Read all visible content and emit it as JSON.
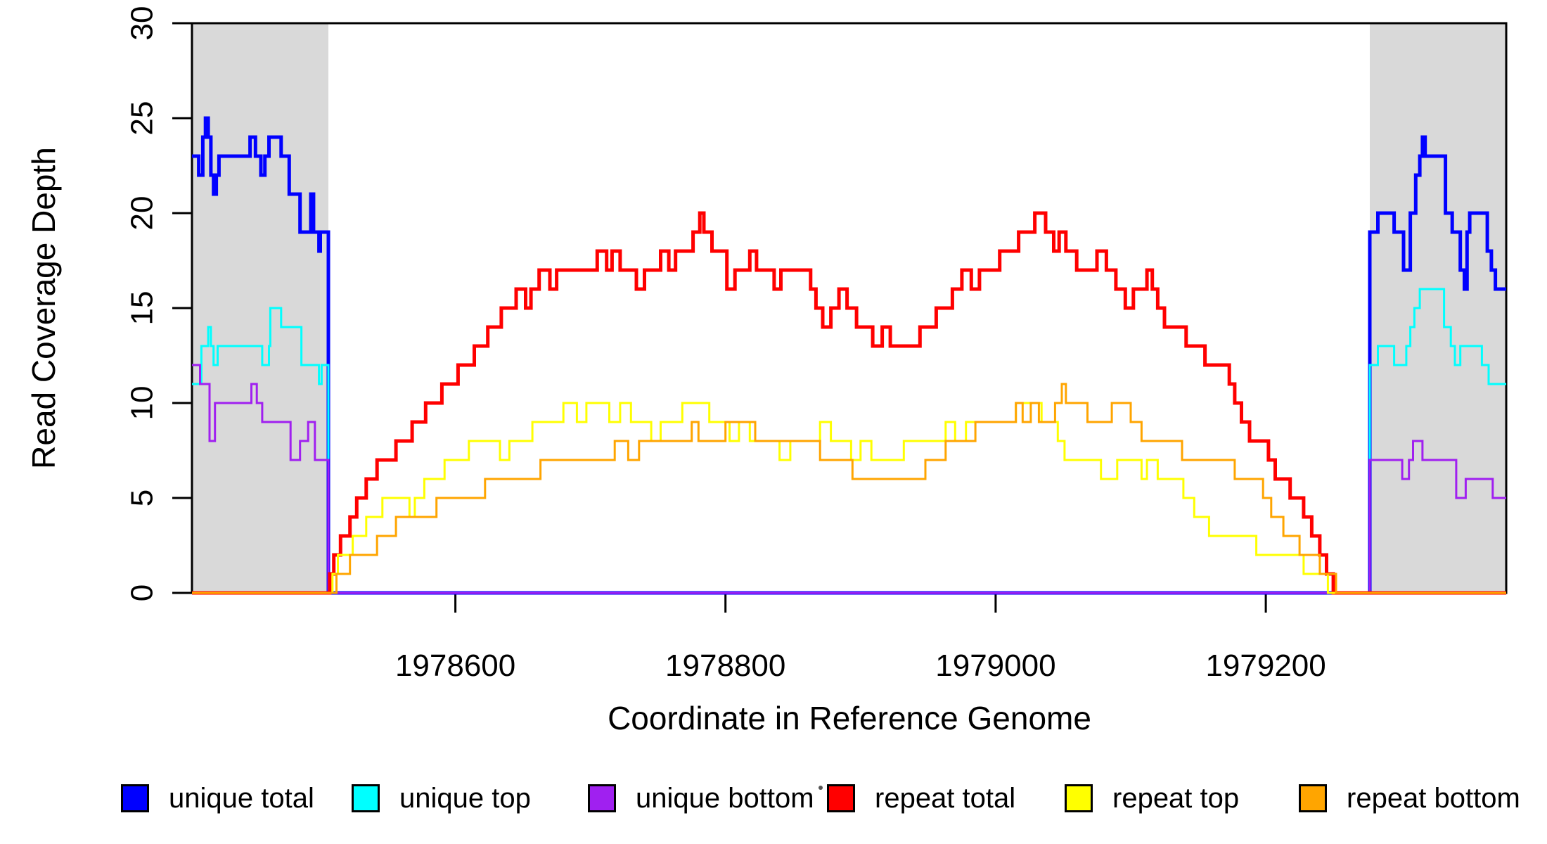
{
  "chart_data": {
    "type": "line",
    "subtype": "step",
    "title": "",
    "xlabel": "Coordinate in Reference Genome",
    "ylabel": "Read Coverage Depth",
    "xlim": [
      1978405,
      1979378
    ],
    "ylim": [
      0,
      30
    ],
    "x_ticks": [
      "1978600",
      "1978800",
      "1979000",
      "1979200"
    ],
    "x_tick_values": [
      1978600,
      1978800,
      1979000,
      1979200
    ],
    "y_ticks": [
      "0",
      "5",
      "10",
      "15",
      "20",
      "25",
      "30"
    ],
    "y_tick_values": [
      0,
      5,
      10,
      15,
      20,
      25,
      30
    ],
    "grid": false,
    "legend_position": "bottom",
    "background_color": "#ffffff",
    "shaded_regions": [
      {
        "name": "left-unique-flank",
        "x0": 1978405,
        "x1": 1978506,
        "color": "#d9d9d9"
      },
      {
        "name": "right-unique-flank",
        "x0": 1979277,
        "x1": 1979378,
        "color": "#d9d9d9"
      }
    ],
    "legend": {
      "items": [
        {
          "label": "unique total",
          "color": "#0000ff"
        },
        {
          "label": "unique top",
          "color": "#00ffff"
        },
        {
          "label": "unique bottom",
          "color": "#a020f0"
        },
        {
          "label": "repeat total",
          "color": "#ff0000"
        },
        {
          "label": "repeat top",
          "color": "#ffff00"
        },
        {
          "label": "repeat bottom",
          "color": "#ffa500"
        }
      ]
    },
    "series": [
      {
        "name": "unique total",
        "color": "#0000ff",
        "line_width": 5,
        "points": [
          [
            1978405,
            23
          ],
          [
            1978410,
            22
          ],
          [
            1978413,
            24
          ],
          [
            1978415,
            25
          ],
          [
            1978417,
            24
          ],
          [
            1978419,
            22
          ],
          [
            1978421,
            21
          ],
          [
            1978423,
            22
          ],
          [
            1978425,
            23
          ],
          [
            1978448,
            24
          ],
          [
            1978452,
            23
          ],
          [
            1978456,
            22
          ],
          [
            1978459,
            23
          ],
          [
            1978462,
            24
          ],
          [
            1978471,
            23
          ],
          [
            1978477,
            21
          ],
          [
            1978485,
            19
          ],
          [
            1978493,
            21
          ],
          [
            1978495,
            19
          ],
          [
            1978499,
            18
          ],
          [
            1978500,
            19
          ],
          [
            1978506,
            0
          ],
          [
            1979277,
            19
          ],
          [
            1979283,
            20
          ],
          [
            1979295,
            19
          ],
          [
            1979302,
            17
          ],
          [
            1979307,
            20
          ],
          [
            1979311,
            22
          ],
          [
            1979314,
            23
          ],
          [
            1979316,
            24
          ],
          [
            1979318,
            23
          ],
          [
            1979333,
            20
          ],
          [
            1979338,
            19
          ],
          [
            1979344,
            17
          ],
          [
            1979347,
            16
          ],
          [
            1979349,
            19
          ],
          [
            1979351,
            20
          ],
          [
            1979364,
            18
          ],
          [
            1979367,
            17
          ],
          [
            1979370,
            16
          ]
        ]
      },
      {
        "name": "unique top",
        "color": "#00ffff",
        "line_width": 3,
        "points": [
          [
            1978405,
            11
          ],
          [
            1978412,
            13
          ],
          [
            1978417,
            14
          ],
          [
            1978419,
            13
          ],
          [
            1978421,
            12
          ],
          [
            1978424,
            13
          ],
          [
            1978457,
            12
          ],
          [
            1978462,
            13
          ],
          [
            1978463,
            15
          ],
          [
            1978471,
            14
          ],
          [
            1978486,
            12
          ],
          [
            1978499,
            11
          ],
          [
            1978501,
            12
          ],
          [
            1978506,
            0
          ],
          [
            1979277,
            12
          ],
          [
            1979283,
            13
          ],
          [
            1979295,
            12
          ],
          [
            1979304,
            13
          ],
          [
            1979307,
            14
          ],
          [
            1979310,
            15
          ],
          [
            1979314,
            16
          ],
          [
            1979332,
            14
          ],
          [
            1979337,
            13
          ],
          [
            1979340,
            12
          ],
          [
            1979344,
            13
          ],
          [
            1979360,
            12
          ],
          [
            1979365,
            11
          ]
        ]
      },
      {
        "name": "unique bottom",
        "color": "#a020f0",
        "line_width": 3,
        "points": [
          [
            1978405,
            12
          ],
          [
            1978411,
            11
          ],
          [
            1978418,
            8
          ],
          [
            1978422,
            10
          ],
          [
            1978449,
            11
          ],
          [
            1978453,
            10
          ],
          [
            1978457,
            9
          ],
          [
            1978478,
            7
          ],
          [
            1978485,
            8
          ],
          [
            1978491,
            9
          ],
          [
            1978496,
            7
          ],
          [
            1978506,
            0
          ],
          [
            1979277,
            7
          ],
          [
            1979301,
            6
          ],
          [
            1979306,
            7
          ],
          [
            1979309,
            8
          ],
          [
            1979316,
            7
          ],
          [
            1979341,
            5
          ],
          [
            1979348,
            6
          ],
          [
            1979368,
            5
          ]
        ]
      },
      {
        "name": "repeat total",
        "color": "#ff0000",
        "line_width": 5,
        "points": [
          [
            1978405,
            0
          ],
          [
            1978507,
            1
          ],
          [
            1978510,
            2
          ],
          [
            1978515,
            3
          ],
          [
            1978522,
            4
          ],
          [
            1978527,
            5
          ],
          [
            1978534,
            6
          ],
          [
            1978542,
            7
          ],
          [
            1978551,
            7
          ],
          [
            1978556,
            8
          ],
          [
            1978563,
            8
          ],
          [
            1978568,
            9
          ],
          [
            1978574,
            9
          ],
          [
            1978578,
            10
          ],
          [
            1978585,
            10
          ],
          [
            1978590,
            11
          ],
          [
            1978597,
            11
          ],
          [
            1978602,
            12
          ],
          [
            1978609,
            12
          ],
          [
            1978614,
            13
          ],
          [
            1978620,
            13
          ],
          [
            1978624,
            14
          ],
          [
            1978630,
            14
          ],
          [
            1978634,
            15
          ],
          [
            1978640,
            15
          ],
          [
            1978645,
            16
          ],
          [
            1978652,
            15
          ],
          [
            1978656,
            16
          ],
          [
            1978662,
            17
          ],
          [
            1978670,
            16
          ],
          [
            1978675,
            17
          ],
          [
            1978692,
            17
          ],
          [
            1978705,
            18
          ],
          [
            1978712,
            17
          ],
          [
            1978716,
            18
          ],
          [
            1978722,
            17
          ],
          [
            1978734,
            16
          ],
          [
            1978740,
            17
          ],
          [
            1978752,
            18
          ],
          [
            1978758,
            17
          ],
          [
            1978763,
            18
          ],
          [
            1978776,
            19
          ],
          [
            1978781,
            20
          ],
          [
            1978784,
            19
          ],
          [
            1978790,
            18
          ],
          [
            1978801,
            16
          ],
          [
            1978807,
            17
          ],
          [
            1978818,
            18
          ],
          [
            1978823,
            17
          ],
          [
            1978836,
            16
          ],
          [
            1978841,
            17
          ],
          [
            1978857,
            17
          ],
          [
            1978863,
            16
          ],
          [
            1978867,
            15
          ],
          [
            1978872,
            14
          ],
          [
            1978878,
            15
          ],
          [
            1978884,
            16
          ],
          [
            1978890,
            15
          ],
          [
            1978897,
            14
          ],
          [
            1978909,
            13
          ],
          [
            1978916,
            14
          ],
          [
            1978922,
            13
          ],
          [
            1978944,
            14
          ],
          [
            1978956,
            15
          ],
          [
            1978968,
            16
          ],
          [
            1978975,
            17
          ],
          [
            1978982,
            16
          ],
          [
            1978988,
            17
          ],
          [
            1979003,
            18
          ],
          [
            1979017,
            19
          ],
          [
            1979029,
            20
          ],
          [
            1979037,
            19
          ],
          [
            1979043,
            18
          ],
          [
            1979047,
            19
          ],
          [
            1979052,
            18
          ],
          [
            1979060,
            17
          ],
          [
            1979075,
            18
          ],
          [
            1979082,
            17
          ],
          [
            1979089,
            16
          ],
          [
            1979096,
            15
          ],
          [
            1979102,
            16
          ],
          [
            1979112,
            17
          ],
          [
            1979116,
            16
          ],
          [
            1979120,
            15
          ],
          [
            1979125,
            14
          ],
          [
            1979141,
            13
          ],
          [
            1979155,
            12
          ],
          [
            1979173,
            11
          ],
          [
            1979177,
            10
          ],
          [
            1979182,
            9
          ],
          [
            1979188,
            8
          ],
          [
            1979202,
            7
          ],
          [
            1979207,
            6
          ],
          [
            1979218,
            5
          ],
          [
            1979228,
            4
          ],
          [
            1979234,
            3
          ],
          [
            1979240,
            2
          ],
          [
            1979245,
            1
          ],
          [
            1979250,
            0
          ]
        ]
      },
      {
        "name": "repeat top",
        "color": "#ffff00",
        "line_width": 3,
        "points": [
          [
            1978405,
            0
          ],
          [
            1978509,
            1
          ],
          [
            1978513,
            2
          ],
          [
            1978524,
            3
          ],
          [
            1978534,
            4
          ],
          [
            1978546,
            5
          ],
          [
            1978566,
            4
          ],
          [
            1978570,
            5
          ],
          [
            1978577,
            6
          ],
          [
            1978592,
            7
          ],
          [
            1978610,
            8
          ],
          [
            1978633,
            7
          ],
          [
            1978640,
            8
          ],
          [
            1978657,
            9
          ],
          [
            1978680,
            10
          ],
          [
            1978690,
            9
          ],
          [
            1978697,
            10
          ],
          [
            1978714,
            9
          ],
          [
            1978722,
            10
          ],
          [
            1978730,
            9
          ],
          [
            1978745,
            8
          ],
          [
            1978752,
            9
          ],
          [
            1978768,
            10
          ],
          [
            1978788,
            9
          ],
          [
            1978803,
            8
          ],
          [
            1978810,
            9
          ],
          [
            1978818,
            8
          ],
          [
            1978840,
            7
          ],
          [
            1978848,
            8
          ],
          [
            1978870,
            9
          ],
          [
            1978878,
            8
          ],
          [
            1978893,
            7
          ],
          [
            1978900,
            8
          ],
          [
            1978908,
            7
          ],
          [
            1978932,
            8
          ],
          [
            1978963,
            9
          ],
          [
            1978970,
            8
          ],
          [
            1978978,
            9
          ],
          [
            1979015,
            10
          ],
          [
            1979034,
            9
          ],
          [
            1979046,
            8
          ],
          [
            1979051,
            7
          ],
          [
            1979078,
            6
          ],
          [
            1979090,
            7
          ],
          [
            1979108,
            6
          ],
          [
            1979112,
            7
          ],
          [
            1979120,
            6
          ],
          [
            1979139,
            5
          ],
          [
            1979147,
            4
          ],
          [
            1979158,
            3
          ],
          [
            1979193,
            2
          ],
          [
            1979228,
            1
          ],
          [
            1979246,
            0
          ]
        ]
      },
      {
        "name": "repeat bottom",
        "color": "#ffa500",
        "line_width": 3,
        "points": [
          [
            1978405,
            0
          ],
          [
            1978512,
            1
          ],
          [
            1978522,
            2
          ],
          [
            1978542,
            3
          ],
          [
            1978556,
            4
          ],
          [
            1978586,
            5
          ],
          [
            1978622,
            6
          ],
          [
            1978663,
            7
          ],
          [
            1978718,
            8
          ],
          [
            1978728,
            7
          ],
          [
            1978736,
            8
          ],
          [
            1978775,
            9
          ],
          [
            1978780,
            8
          ],
          [
            1978800,
            9
          ],
          [
            1978822,
            8
          ],
          [
            1978870,
            7
          ],
          [
            1978894,
            6
          ],
          [
            1978948,
            7
          ],
          [
            1978963,
            8
          ],
          [
            1978985,
            9
          ],
          [
            1979015,
            10
          ],
          [
            1979020,
            9
          ],
          [
            1979026,
            10
          ],
          [
            1979032,
            9
          ],
          [
            1979044,
            10
          ],
          [
            1979049,
            11
          ],
          [
            1979052,
            10
          ],
          [
            1979068,
            9
          ],
          [
            1979086,
            10
          ],
          [
            1979100,
            9
          ],
          [
            1979108,
            8
          ],
          [
            1979138,
            7
          ],
          [
            1979177,
            6
          ],
          [
            1979198,
            5
          ],
          [
            1979204,
            4
          ],
          [
            1979213,
            3
          ],
          [
            1979225,
            2
          ],
          [
            1979240,
            1
          ],
          [
            1979252,
            0
          ]
        ]
      }
    ],
    "stray_mark": {
      "x": 1167,
      "y": 1120
    }
  },
  "layout_note": ""
}
